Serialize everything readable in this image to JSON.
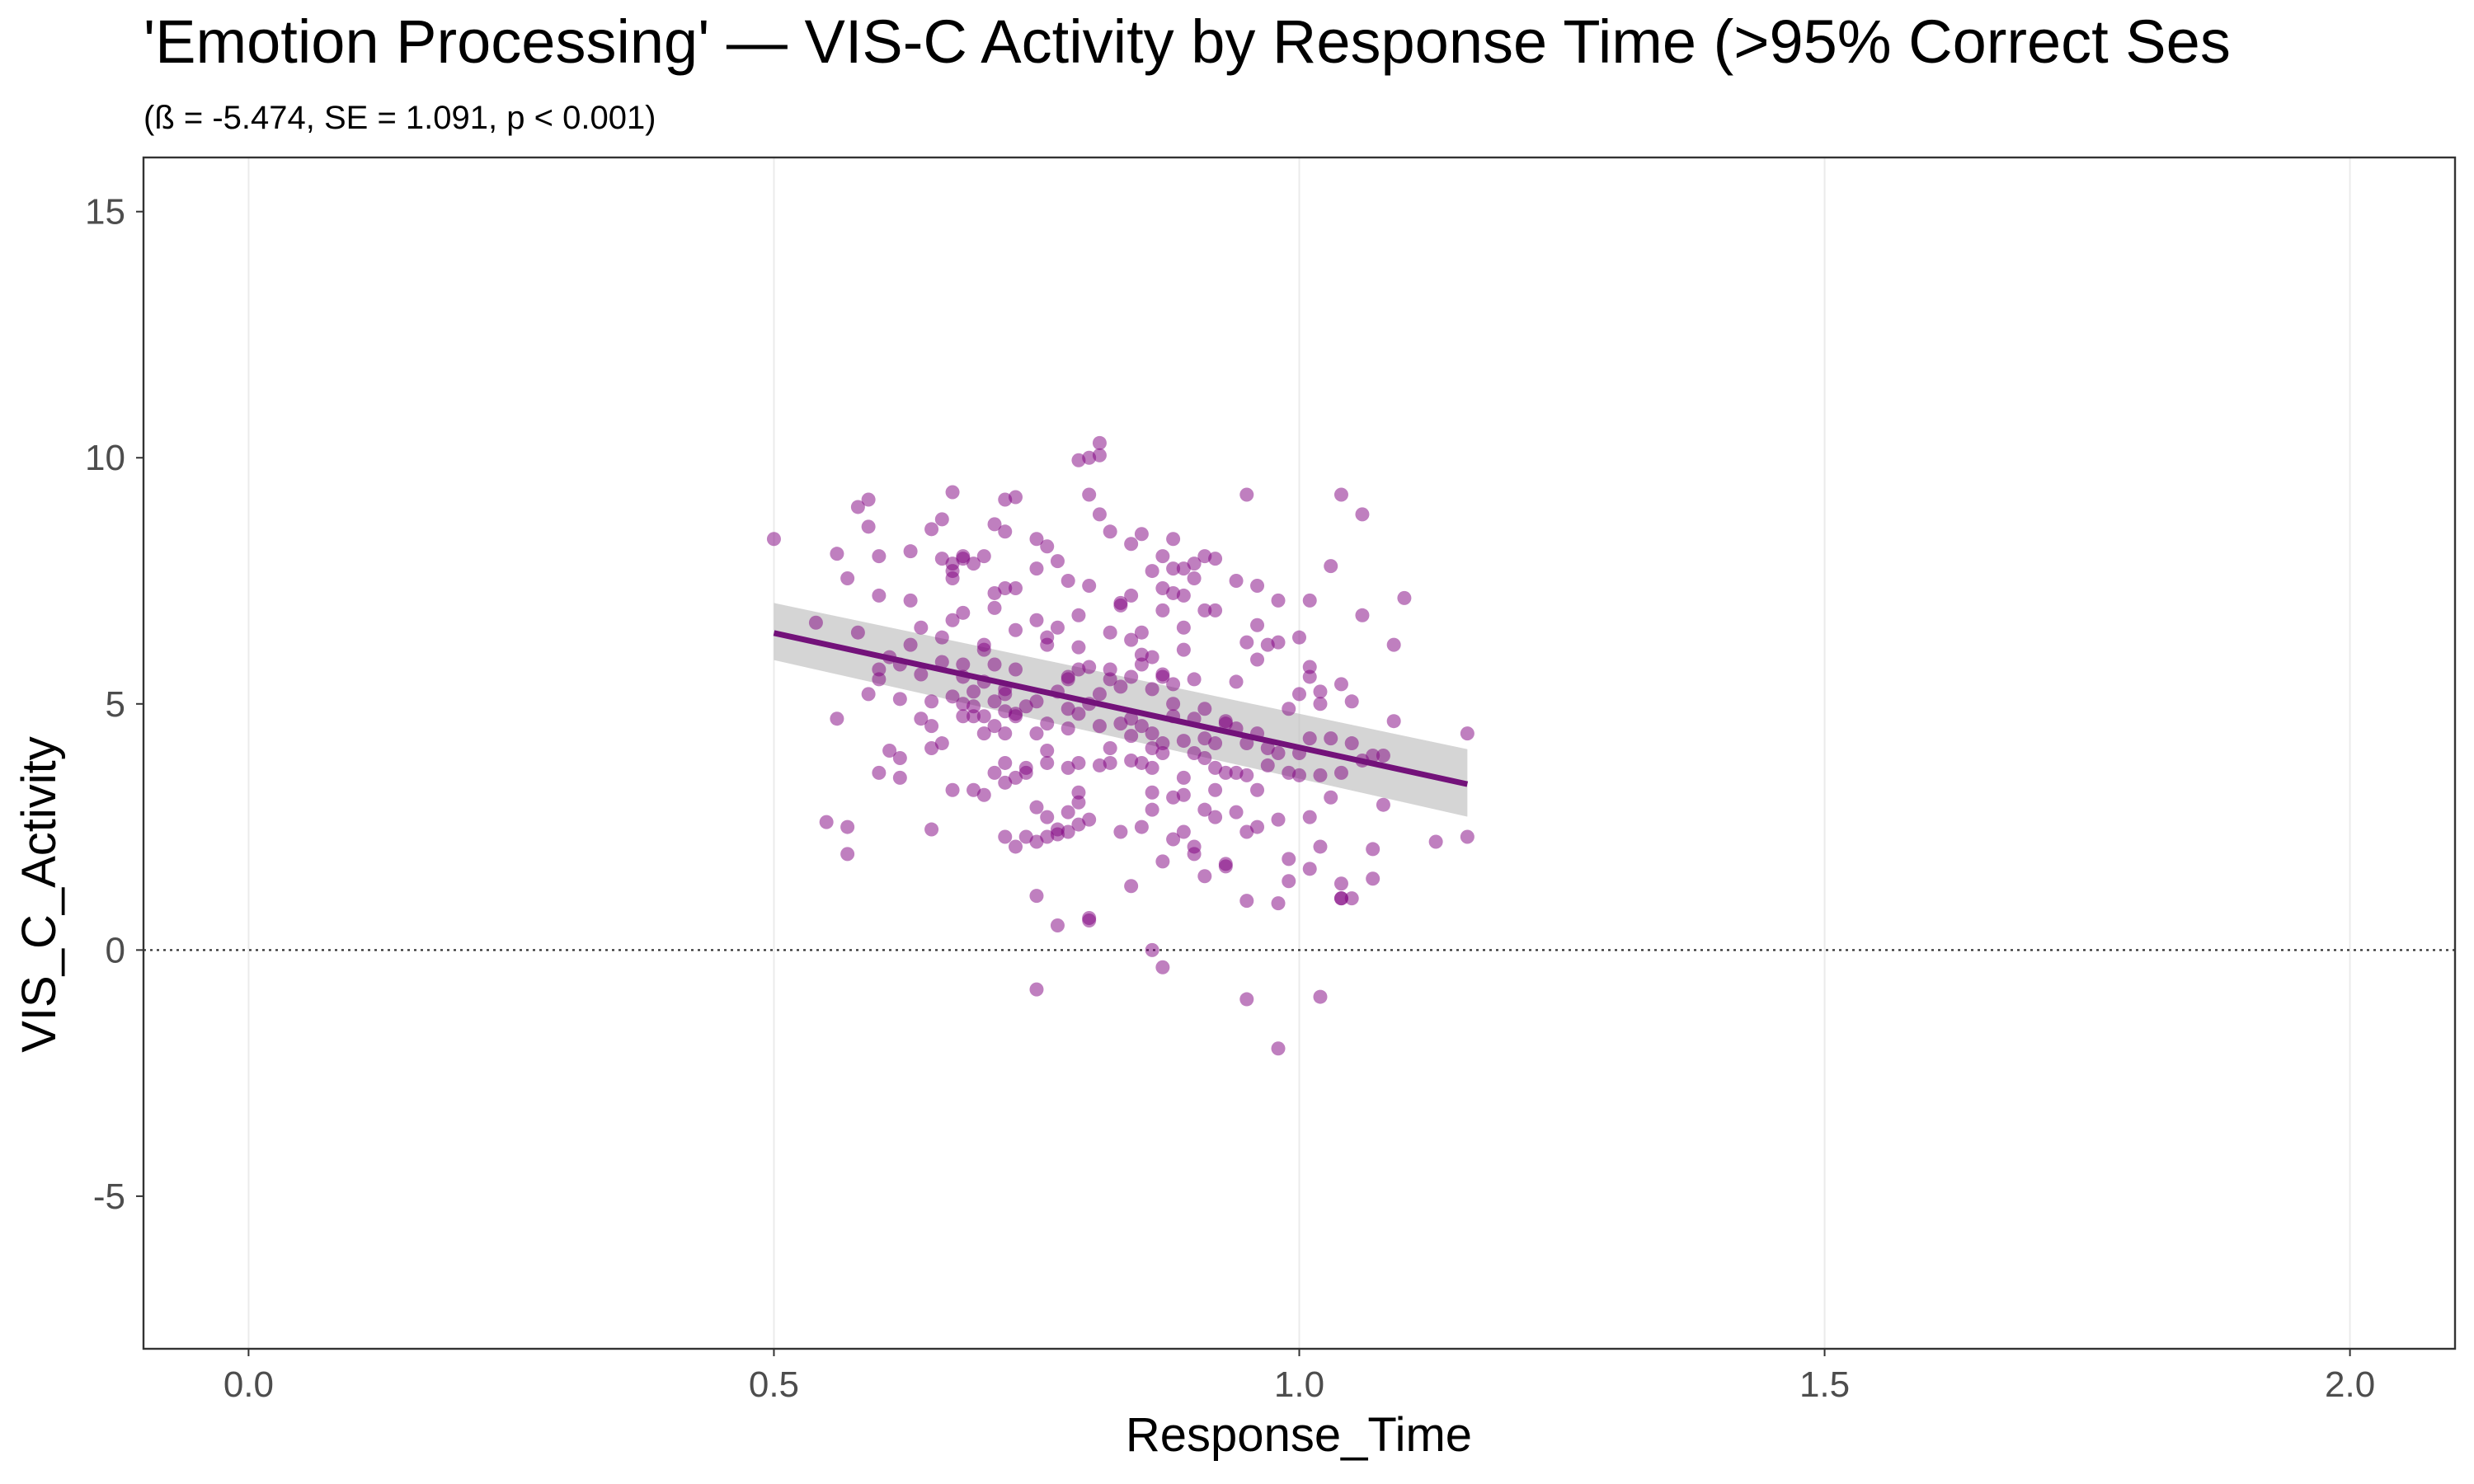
{
  "chart_data": {
    "type": "scatter",
    "title": "'Emotion Processing' — VIS-C Activity by Response Time (>95% Correct Ses",
    "subtitle": "(ß = -5.474, SE = 1.091, p < 0.001)",
    "xlabel": "Response_Time",
    "ylabel": "VIS_C_Activity",
    "xlim": [
      -0.1,
      2.1
    ],
    "ylim": [
      -8.1,
      16.1
    ],
    "x_ticks": [
      0.0,
      0.5,
      1.0,
      1.5,
      2.0
    ],
    "x_tick_labels": [
      "0.0",
      "0.5",
      "1.0",
      "1.5",
      "2.0"
    ],
    "y_ticks": [
      -5,
      0,
      5,
      10,
      15
    ],
    "y_tick_labels": [
      "-5",
      "0",
      "5",
      "10",
      "15"
    ],
    "grid": "vertical-major",
    "legend": "none",
    "reference_line": {
      "y": 0,
      "style": "dotted",
      "color": "#333333"
    },
    "point_color": "#800080",
    "line_color": "#73127a",
    "ribbon_color": "#bfbfbf",
    "regression": {
      "x": [
        0.5,
        1.16
      ],
      "y": [
        6.44,
        3.37
      ],
      "ci_lower": [
        5.89,
        2.71
      ],
      "ci_upper": [
        7.05,
        4.08
      ]
    },
    "points": [
      [
        0.5,
        8.35
      ],
      [
        0.54,
        6.65
      ],
      [
        0.55,
        2.6
      ],
      [
        0.56,
        8.05
      ],
      [
        0.56,
        4.7
      ],
      [
        0.57,
        1.95
      ],
      [
        0.57,
        7.55
      ],
      [
        0.57,
        2.5
      ],
      [
        0.58,
        6.45
      ],
      [
        0.58,
        9.0
      ],
      [
        0.59,
        5.2
      ],
      [
        0.59,
        8.6
      ],
      [
        0.59,
        9.15
      ],
      [
        0.6,
        5.7
      ],
      [
        0.6,
        5.5
      ],
      [
        0.6,
        7.2
      ],
      [
        0.6,
        8.0
      ],
      [
        0.6,
        3.6
      ],
      [
        0.61,
        5.95
      ],
      [
        0.61,
        4.05
      ],
      [
        0.62,
        5.8
      ],
      [
        0.62,
        3.5
      ],
      [
        0.62,
        3.9
      ],
      [
        0.62,
        5.1
      ],
      [
        0.63,
        7.1
      ],
      [
        0.63,
        8.1
      ],
      [
        0.63,
        6.2
      ],
      [
        0.64,
        6.55
      ],
      [
        0.64,
        4.7
      ],
      [
        0.64,
        5.6
      ],
      [
        0.65,
        4.55
      ],
      [
        0.65,
        4.1
      ],
      [
        0.65,
        2.45
      ],
      [
        0.65,
        5.05
      ],
      [
        0.65,
        8.55
      ],
      [
        0.66,
        7.95
      ],
      [
        0.66,
        8.75
      ],
      [
        0.66,
        6.35
      ],
      [
        0.66,
        5.85
      ],
      [
        0.66,
        4.2
      ],
      [
        0.67,
        7.85
      ],
      [
        0.67,
        7.7
      ],
      [
        0.67,
        7.55
      ],
      [
        0.67,
        5.15
      ],
      [
        0.67,
        3.25
      ],
      [
        0.67,
        6.7
      ],
      [
        0.67,
        9.3
      ],
      [
        0.68,
        7.95
      ],
      [
        0.68,
        5.0
      ],
      [
        0.68,
        5.8
      ],
      [
        0.68,
        4.75
      ],
      [
        0.68,
        6.85
      ],
      [
        0.68,
        8.0
      ],
      [
        0.68,
        5.55
      ],
      [
        0.69,
        5.25
      ],
      [
        0.69,
        4.95
      ],
      [
        0.69,
        3.25
      ],
      [
        0.69,
        4.75
      ],
      [
        0.69,
        7.85
      ],
      [
        0.7,
        6.2
      ],
      [
        0.7,
        8.0
      ],
      [
        0.7,
        4.4
      ],
      [
        0.7,
        4.75
      ],
      [
        0.7,
        6.1
      ],
      [
        0.7,
        5.45
      ],
      [
        0.7,
        3.15
      ],
      [
        0.71,
        8.65
      ],
      [
        0.71,
        7.25
      ],
      [
        0.71,
        6.95
      ],
      [
        0.71,
        5.8
      ],
      [
        0.71,
        4.55
      ],
      [
        0.71,
        5.05
      ],
      [
        0.71,
        3.6
      ],
      [
        0.72,
        9.15
      ],
      [
        0.72,
        8.5
      ],
      [
        0.72,
        7.35
      ],
      [
        0.72,
        5.3
      ],
      [
        0.72,
        5.2
      ],
      [
        0.72,
        4.85
      ],
      [
        0.72,
        4.4
      ],
      [
        0.72,
        3.8
      ],
      [
        0.72,
        3.4
      ],
      [
        0.72,
        2.3
      ],
      [
        0.73,
        9.2
      ],
      [
        0.73,
        7.35
      ],
      [
        0.73,
        6.5
      ],
      [
        0.73,
        5.7
      ],
      [
        0.73,
        4.8
      ],
      [
        0.73,
        4.75
      ],
      [
        0.73,
        3.5
      ],
      [
        0.73,
        2.1
      ],
      [
        0.74,
        4.95
      ],
      [
        0.74,
        3.7
      ],
      [
        0.74,
        2.3
      ],
      [
        0.74,
        3.6
      ],
      [
        0.75,
        8.35
      ],
      [
        0.75,
        6.7
      ],
      [
        0.75,
        7.75
      ],
      [
        0.75,
        5.05
      ],
      [
        0.75,
        4.4
      ],
      [
        0.75,
        2.9
      ],
      [
        0.75,
        2.2
      ],
      [
        0.75,
        1.1
      ],
      [
        0.75,
        -0.8
      ],
      [
        0.76,
        6.35
      ],
      [
        0.76,
        6.2
      ],
      [
        0.76,
        4.05
      ],
      [
        0.76,
        3.8
      ],
      [
        0.76,
        2.3
      ],
      [
        0.76,
        2.7
      ],
      [
        0.76,
        4.6
      ],
      [
        0.76,
        8.2
      ],
      [
        0.77,
        6.55
      ],
      [
        0.77,
        5.25
      ],
      [
        0.77,
        7.9
      ],
      [
        0.77,
        2.35
      ],
      [
        0.77,
        2.45
      ],
      [
        0.77,
        0.5
      ],
      [
        0.78,
        5.55
      ],
      [
        0.78,
        5.5
      ],
      [
        0.78,
        4.9
      ],
      [
        0.78,
        4.5
      ],
      [
        0.78,
        3.7
      ],
      [
        0.78,
        2.8
      ],
      [
        0.78,
        2.4
      ],
      [
        0.78,
        7.5
      ],
      [
        0.79,
        6.15
      ],
      [
        0.79,
        3.2
      ],
      [
        0.79,
        3.0
      ],
      [
        0.79,
        2.55
      ],
      [
        0.79,
        3.8
      ],
      [
        0.79,
        6.8
      ],
      [
        0.79,
        5.7
      ],
      [
        0.79,
        4.8
      ],
      [
        0.79,
        9.95
      ],
      [
        0.8,
        5.0
      ],
      [
        0.8,
        7.4
      ],
      [
        0.8,
        10.0
      ],
      [
        0.8,
        9.25
      ],
      [
        0.8,
        5.75
      ],
      [
        0.8,
        2.65
      ],
      [
        0.8,
        0.65
      ],
      [
        0.8,
        0.6
      ],
      [
        0.81,
        10.3
      ],
      [
        0.81,
        10.05
      ],
      [
        0.81,
        8.85
      ],
      [
        0.81,
        4.55
      ],
      [
        0.81,
        3.75
      ],
      [
        0.81,
        5.2
      ],
      [
        0.82,
        4.1
      ],
      [
        0.82,
        3.8
      ],
      [
        0.82,
        5.7
      ],
      [
        0.82,
        8.5
      ],
      [
        0.82,
        6.45
      ],
      [
        0.82,
        5.5
      ],
      [
        0.83,
        7.05
      ],
      [
        0.83,
        5.35
      ],
      [
        0.83,
        7.0
      ],
      [
        0.83,
        4.6
      ],
      [
        0.83,
        2.4
      ],
      [
        0.84,
        8.25
      ],
      [
        0.84,
        6.3
      ],
      [
        0.84,
        5.55
      ],
      [
        0.84,
        4.7
      ],
      [
        0.84,
        3.85
      ],
      [
        0.84,
        4.35
      ],
      [
        0.84,
        7.2
      ],
      [
        0.84,
        1.3
      ],
      [
        0.85,
        6.0
      ],
      [
        0.85,
        5.8
      ],
      [
        0.85,
        3.8
      ],
      [
        0.85,
        6.45
      ],
      [
        0.85,
        8.45
      ],
      [
        0.85,
        2.5
      ],
      [
        0.85,
        4.55
      ],
      [
        0.86,
        5.95
      ],
      [
        0.86,
        4.1
      ],
      [
        0.86,
        3.7
      ],
      [
        0.86,
        3.2
      ],
      [
        0.86,
        2.85
      ],
      [
        0.86,
        4.4
      ],
      [
        0.86,
        7.7
      ],
      [
        0.86,
        5.3
      ],
      [
        0.86,
        0.0
      ],
      [
        0.87,
        5.6
      ],
      [
        0.87,
        4.0
      ],
      [
        0.87,
        7.35
      ],
      [
        0.87,
        6.9
      ],
      [
        0.87,
        5.55
      ],
      [
        0.87,
        4.2
      ],
      [
        0.87,
        8.0
      ],
      [
        0.87,
        1.8
      ],
      [
        0.87,
        -0.35
      ],
      [
        0.88,
        7.75
      ],
      [
        0.88,
        7.25
      ],
      [
        0.88,
        5.0
      ],
      [
        0.88,
        4.75
      ],
      [
        0.88,
        3.1
      ],
      [
        0.88,
        2.25
      ],
      [
        0.88,
        8.35
      ],
      [
        0.88,
        5.4
      ],
      [
        0.89,
        7.2
      ],
      [
        0.89,
        6.55
      ],
      [
        0.89,
        4.25
      ],
      [
        0.89,
        3.5
      ],
      [
        0.89,
        2.4
      ],
      [
        0.89,
        7.75
      ],
      [
        0.89,
        6.1
      ],
      [
        0.89,
        3.15
      ],
      [
        0.9,
        7.85
      ],
      [
        0.9,
        7.55
      ],
      [
        0.9,
        5.5
      ],
      [
        0.9,
        4.7
      ],
      [
        0.9,
        4.0
      ],
      [
        0.9,
        2.1
      ],
      [
        0.9,
        1.95
      ],
      [
        0.91,
        8.0
      ],
      [
        0.91,
        6.9
      ],
      [
        0.91,
        4.9
      ],
      [
        0.91,
        4.3
      ],
      [
        0.91,
        3.9
      ],
      [
        0.91,
        2.85
      ],
      [
        0.91,
        1.5
      ],
      [
        0.92,
        7.95
      ],
      [
        0.92,
        3.7
      ],
      [
        0.92,
        3.25
      ],
      [
        0.92,
        2.7
      ],
      [
        0.92,
        4.2
      ],
      [
        0.92,
        6.9
      ],
      [
        0.93,
        4.65
      ],
      [
        0.93,
        4.6
      ],
      [
        0.93,
        3.6
      ],
      [
        0.93,
        1.75
      ],
      [
        0.93,
        1.7
      ],
      [
        0.94,
        7.5
      ],
      [
        0.94,
        5.45
      ],
      [
        0.94,
        4.5
      ],
      [
        0.94,
        3.6
      ],
      [
        0.94,
        2.8
      ],
      [
        0.95,
        9.25
      ],
      [
        0.95,
        6.25
      ],
      [
        0.95,
        4.2
      ],
      [
        0.95,
        3.55
      ],
      [
        0.95,
        2.4
      ],
      [
        0.95,
        1.0
      ],
      [
        0.95,
        -1.0
      ],
      [
        0.96,
        7.4
      ],
      [
        0.96,
        6.6
      ],
      [
        0.96,
        5.9
      ],
      [
        0.96,
        4.4
      ],
      [
        0.96,
        3.25
      ],
      [
        0.96,
        2.5
      ],
      [
        0.97,
        6.2
      ],
      [
        0.97,
        4.1
      ],
      [
        0.97,
        3.75
      ],
      [
        0.98,
        7.1
      ],
      [
        0.98,
        6.25
      ],
      [
        0.98,
        4.0
      ],
      [
        0.98,
        2.65
      ],
      [
        0.98,
        0.95
      ],
      [
        0.98,
        -2.0
      ],
      [
        0.99,
        4.9
      ],
      [
        0.99,
        3.6
      ],
      [
        0.99,
        1.85
      ],
      [
        0.99,
        1.4
      ],
      [
        1.0,
        6.35
      ],
      [
        1.0,
        5.2
      ],
      [
        1.0,
        4.0
      ],
      [
        1.0,
        3.55
      ],
      [
        1.01,
        7.1
      ],
      [
        1.01,
        5.75
      ],
      [
        1.01,
        5.55
      ],
      [
        1.01,
        4.3
      ],
      [
        1.01,
        2.7
      ],
      [
        1.01,
        1.65
      ],
      [
        1.02,
        5.25
      ],
      [
        1.02,
        5.0
      ],
      [
        1.02,
        3.55
      ],
      [
        1.02,
        2.1
      ],
      [
        1.02,
        -0.95
      ],
      [
        1.03,
        7.8
      ],
      [
        1.03,
        4.3
      ],
      [
        1.03,
        3.1
      ],
      [
        1.04,
        5.4
      ],
      [
        1.04,
        3.6
      ],
      [
        1.04,
        1.35
      ],
      [
        1.04,
        1.05
      ],
      [
        1.04,
        1.05
      ],
      [
        1.04,
        9.25
      ],
      [
        1.05,
        5.05
      ],
      [
        1.05,
        4.2
      ],
      [
        1.05,
        1.05
      ],
      [
        1.06,
        8.85
      ],
      [
        1.06,
        6.8
      ],
      [
        1.06,
        3.85
      ],
      [
        1.07,
        3.95
      ],
      [
        1.07,
        2.05
      ],
      [
        1.07,
        1.45
      ],
      [
        1.08,
        2.95
      ],
      [
        1.08,
        3.95
      ],
      [
        1.09,
        4.65
      ],
      [
        1.09,
        6.2
      ],
      [
        1.1,
        7.15
      ],
      [
        1.13,
        2.2
      ],
      [
        1.16,
        4.4
      ],
      [
        1.16,
        2.3
      ]
    ]
  }
}
